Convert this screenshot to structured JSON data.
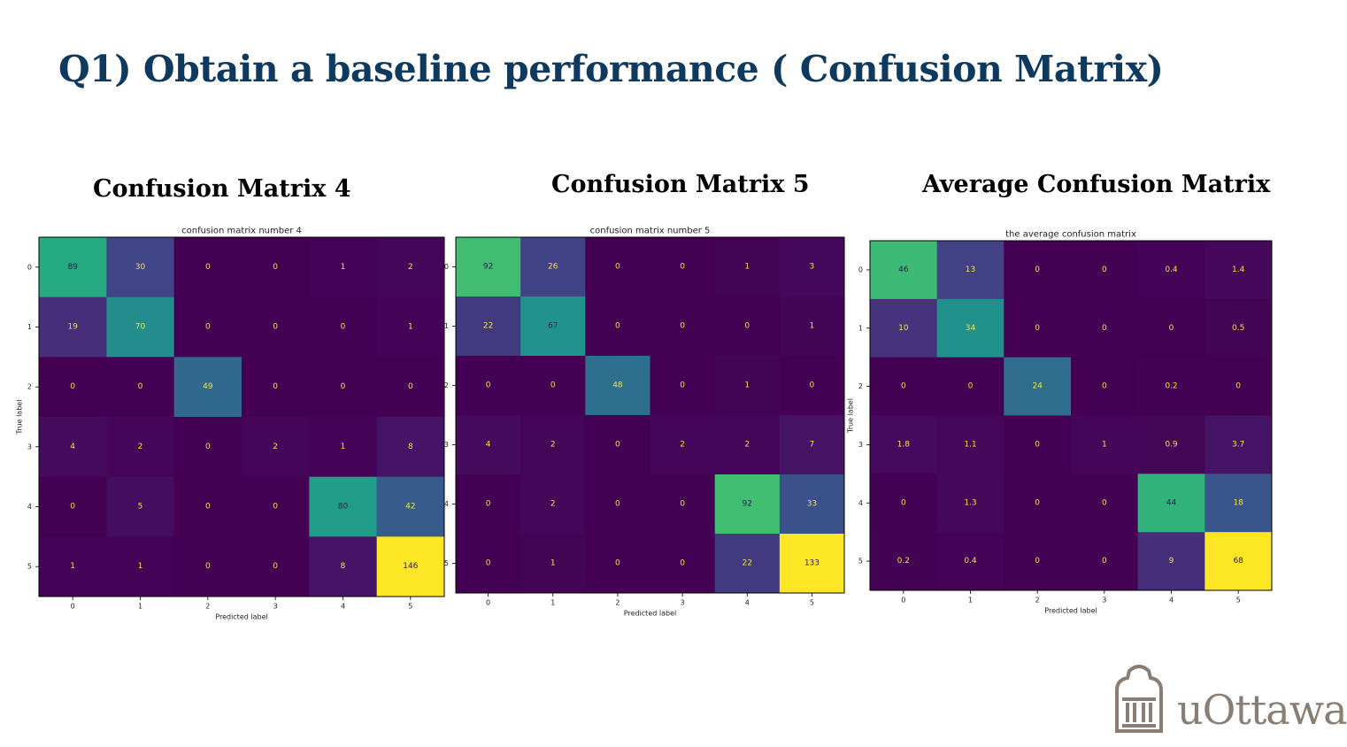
{
  "slide": {
    "title": "Q1) Obtain a baseline performance ( Confusion Matrix)",
    "headings": [
      "Confusion Matrix 4",
      "Confusion Matrix 5",
      "Average Confusion Matrix"
    ]
  },
  "logo": {
    "text": "uOttawa"
  },
  "chart_data": [
    {
      "type": "heatmap",
      "title": "confusion matrix number 4",
      "xlabel": "Predicted label",
      "ylabel": "True label",
      "x_ticks": [
        "0",
        "1",
        "2",
        "3",
        "4",
        "5"
      ],
      "y_ticks": [
        "0",
        "1",
        "2",
        "3",
        "4",
        "5"
      ],
      "values": [
        [
          89,
          30,
          0,
          0,
          1,
          2
        ],
        [
          19,
          70,
          0,
          0,
          0,
          1
        ],
        [
          0,
          0,
          49,
          0,
          0,
          0
        ],
        [
          4,
          2,
          0,
          2,
          1,
          8
        ],
        [
          0,
          5,
          0,
          0,
          80,
          42
        ],
        [
          1,
          1,
          0,
          0,
          8,
          146
        ]
      ],
      "labels": [
        [
          "89",
          "30",
          "0",
          "0",
          "1",
          "2"
        ],
        [
          "19",
          "70",
          "0",
          "0",
          "0",
          "1"
        ],
        [
          "0",
          "0",
          "49",
          "0",
          "0",
          "0"
        ],
        [
          "4",
          "2",
          "0",
          "2",
          "1",
          "8"
        ],
        [
          "0",
          "5",
          "0",
          "0",
          "80",
          "42"
        ],
        [
          "1",
          "1",
          "0",
          "0",
          "8",
          "146"
        ]
      ],
      "vmin": 0,
      "vmax": 146,
      "colormap": "viridis"
    },
    {
      "type": "heatmap",
      "title": "confusion matrix number 5",
      "xlabel": "Predicted label",
      "ylabel": "",
      "x_ticks": [
        "0",
        "1",
        "2",
        "3",
        "4",
        "5"
      ],
      "y_ticks": [
        "0",
        "1",
        "2",
        "3",
        "4",
        "5"
      ],
      "values": [
        [
          92,
          26,
          0,
          0,
          1,
          3
        ],
        [
          22,
          67,
          0,
          0,
          0,
          1
        ],
        [
          0,
          0,
          48,
          0,
          1,
          0
        ],
        [
          4,
          2,
          0,
          2,
          2,
          7
        ],
        [
          0,
          2,
          0,
          0,
          92,
          33
        ],
        [
          0,
          1,
          0,
          0,
          22,
          133
        ]
      ],
      "labels": [
        [
          "92",
          "26",
          "0",
          "0",
          "1",
          "3"
        ],
        [
          "22",
          "67",
          "0",
          "0",
          "0",
          "1"
        ],
        [
          "0",
          "0",
          "48",
          "0",
          "1",
          "0"
        ],
        [
          "4",
          "2",
          "0",
          "2",
          "2",
          "7"
        ],
        [
          "0",
          "2",
          "0",
          "0",
          "92",
          "33"
        ],
        [
          "0",
          "1",
          "0",
          "0",
          "22",
          "133"
        ]
      ],
      "vmin": 0,
      "vmax": 133,
      "colormap": "viridis"
    },
    {
      "type": "heatmap",
      "title": "the average confusion matrix",
      "xlabel": "Predicted label",
      "ylabel": "True label",
      "x_ticks": [
        "0",
        "1",
        "2",
        "3",
        "4",
        "5"
      ],
      "y_ticks": [
        "0",
        "1",
        "2",
        "3",
        "4",
        "5"
      ],
      "values": [
        [
          46,
          13,
          0,
          0,
          0.4,
          1.4
        ],
        [
          10,
          34,
          0,
          0,
          0,
          0.5
        ],
        [
          0,
          0,
          24,
          0,
          0.2,
          0
        ],
        [
          1.8,
          1.1,
          0,
          1,
          0.9,
          3.7
        ],
        [
          0,
          1.3,
          0,
          0,
          44,
          18
        ],
        [
          0.2,
          0.4,
          0,
          0,
          9,
          68
        ]
      ],
      "labels": [
        [
          "46",
          "13",
          "0",
          "0",
          "0.4",
          "1.4"
        ],
        [
          "10",
          "34",
          "0",
          "0",
          "0",
          "0.5"
        ],
        [
          "0",
          "0",
          "24",
          "0",
          "0.2",
          "0"
        ],
        [
          "1.8",
          "1.1",
          "0",
          "1",
          "0.9",
          "3.7"
        ],
        [
          "0",
          "1.3",
          "0",
          "0",
          "44",
          "18"
        ],
        [
          "0.2",
          "0.4",
          "0",
          "0",
          "9",
          "68"
        ]
      ],
      "vmin": 0,
      "vmax": 68,
      "colormap": "viridis"
    }
  ]
}
